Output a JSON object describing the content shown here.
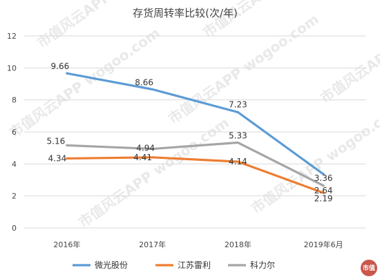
{
  "chart_data": {
    "type": "line",
    "title": "存货周转率比较(次/年)",
    "categories": [
      "2016年",
      "2017年",
      "2018年",
      "2019年6月"
    ],
    "ylim": [
      0,
      12
    ],
    "yticks": [
      0,
      2,
      4,
      6,
      8,
      10,
      12
    ],
    "grid": true,
    "legend_position": "bottom",
    "series": [
      {
        "name": "微光股份",
        "color": "#5b9bd5",
        "values": [
          9.66,
          8.66,
          7.23,
          3.36
        ],
        "labels": [
          "9.66",
          "8.66",
          "7.23",
          "3.36"
        ]
      },
      {
        "name": "江苏雷利",
        "color": "#ed7d31",
        "values": [
          4.34,
          4.41,
          4.14,
          2.19
        ],
        "labels": [
          "4.34",
          "4.41",
          "4.14",
          "2.19"
        ]
      },
      {
        "name": "科力尔",
        "color": "#a5a5a5",
        "values": [
          5.16,
          4.94,
          5.33,
          2.64
        ],
        "labels": [
          "5.16",
          "4.94",
          "5.33",
          "2.64"
        ]
      }
    ]
  },
  "watermark": {
    "text": "市值风云APP wogoo.com",
    "seal_text": "市值"
  }
}
